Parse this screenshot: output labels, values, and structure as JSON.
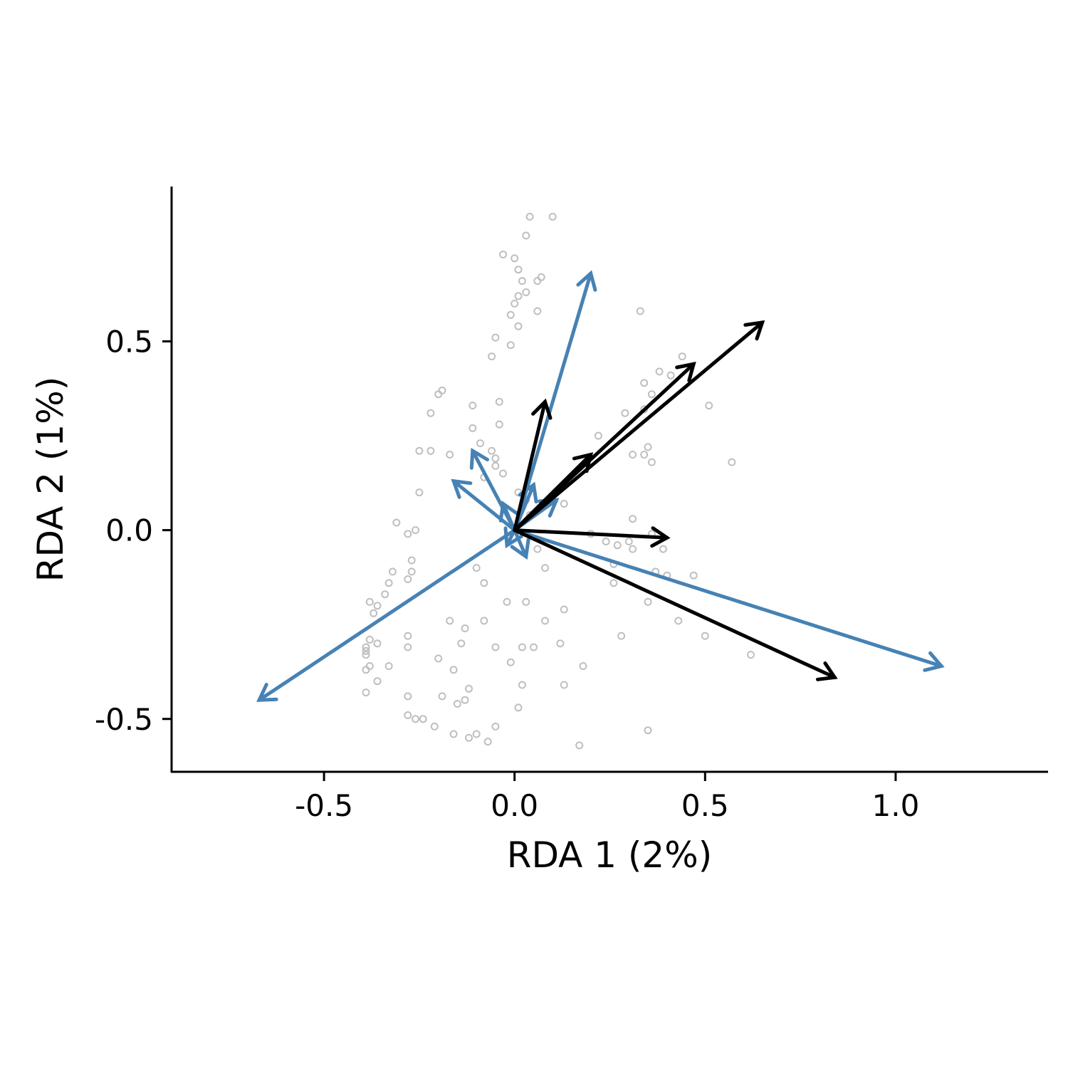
{
  "chart_data": {
    "type": "scatter",
    "title": "",
    "xlabel": "RDA 1 (2%)",
    "ylabel": "RDA 2 (1%)",
    "xlim": [
      -0.9,
      1.4
    ],
    "ylim": [
      -0.64,
      0.91
    ],
    "xticks": [
      -0.5,
      0.0,
      0.5,
      1.0
    ],
    "xtick_labels": [
      "-0.5",
      "0.0",
      "0.5",
      "1.0"
    ],
    "yticks": [
      -0.5,
      0.0,
      0.5
    ],
    "ytick_labels": [
      "-0.5",
      "0.0",
      "0.5"
    ],
    "grid": false,
    "colors": {
      "points": "#bfbfbf",
      "blue_arrows": "#4682b4",
      "black_arrows": "#000000"
    },
    "points": [
      [
        0.04,
        0.83
      ],
      [
        0.1,
        0.83
      ],
      [
        0.03,
        0.78
      ],
      [
        -0.03,
        0.73
      ],
      [
        0.0,
        0.72
      ],
      [
        0.01,
        0.69
      ],
      [
        0.07,
        0.67
      ],
      [
        0.06,
        0.66
      ],
      [
        0.02,
        0.66
      ],
      [
        0.03,
        0.63
      ],
      [
        0.01,
        0.62
      ],
      [
        0.0,
        0.6
      ],
      [
        0.06,
        0.58
      ],
      [
        -0.01,
        0.57
      ],
      [
        0.01,
        0.54
      ],
      [
        0.33,
        0.58
      ],
      [
        -0.05,
        0.51
      ],
      [
        -0.01,
        0.49
      ],
      [
        -0.06,
        0.46
      ],
      [
        0.44,
        0.46
      ],
      [
        0.38,
        0.42
      ],
      [
        0.41,
        0.41
      ],
      [
        0.34,
        0.39
      ],
      [
        0.36,
        0.36
      ],
      [
        -0.19,
        0.37
      ],
      [
        -0.2,
        0.36
      ],
      [
        -0.04,
        0.34
      ],
      [
        -0.11,
        0.33
      ],
      [
        0.51,
        0.33
      ],
      [
        0.34,
        0.32
      ],
      [
        0.29,
        0.31
      ],
      [
        -0.22,
        0.31
      ],
      [
        -0.04,
        0.28
      ],
      [
        -0.11,
        0.27
      ],
      [
        0.22,
        0.25
      ],
      [
        -0.09,
        0.23
      ],
      [
        0.35,
        0.22
      ],
      [
        -0.25,
        0.21
      ],
      [
        -0.22,
        0.21
      ],
      [
        -0.06,
        0.21
      ],
      [
        0.31,
        0.2
      ],
      [
        0.34,
        0.2
      ],
      [
        -0.17,
        0.2
      ],
      [
        -0.05,
        0.19
      ],
      [
        0.36,
        0.18
      ],
      [
        0.57,
        0.18
      ],
      [
        -0.05,
        0.17
      ],
      [
        -0.03,
        0.15
      ],
      [
        -0.08,
        0.14
      ],
      [
        -0.25,
        0.1
      ],
      [
        0.01,
        0.1
      ],
      [
        0.03,
        0.08
      ],
      [
        0.13,
        0.07
      ],
      [
        0.04,
        0.04
      ],
      [
        0.31,
        0.03
      ],
      [
        -0.31,
        0.02
      ],
      [
        -0.26,
        0.0
      ],
      [
        -0.28,
        -0.01
      ],
      [
        0.2,
        -0.01
      ],
      [
        0.36,
        -0.01
      ],
      [
        0.24,
        -0.03
      ],
      [
        0.27,
        -0.04
      ],
      [
        0.3,
        -0.03
      ],
      [
        0.31,
        -0.05
      ],
      [
        0.39,
        -0.05
      ],
      [
        0.06,
        -0.05
      ],
      [
        -0.27,
        -0.08
      ],
      [
        -0.27,
        -0.11
      ],
      [
        0.26,
        -0.09
      ],
      [
        -0.1,
        -0.1
      ],
      [
        0.08,
        -0.1
      ],
      [
        -0.32,
        -0.11
      ],
      [
        0.37,
        -0.11
      ],
      [
        0.4,
        -0.12
      ],
      [
        0.47,
        -0.12
      ],
      [
        -0.28,
        -0.13
      ],
      [
        -0.33,
        -0.14
      ],
      [
        -0.08,
        -0.14
      ],
      [
        0.26,
        -0.14
      ],
      [
        -0.34,
        -0.17
      ],
      [
        0.35,
        -0.19
      ],
      [
        -0.38,
        -0.19
      ],
      [
        -0.36,
        -0.2
      ],
      [
        -0.02,
        -0.19
      ],
      [
        0.03,
        -0.19
      ],
      [
        0.13,
        -0.21
      ],
      [
        -0.37,
        -0.22
      ],
      [
        -0.17,
        -0.24
      ],
      [
        -0.08,
        -0.24
      ],
      [
        0.08,
        -0.24
      ],
      [
        0.43,
        -0.24
      ],
      [
        -0.13,
        -0.26
      ],
      [
        -0.28,
        -0.28
      ],
      [
        0.28,
        -0.28
      ],
      [
        0.5,
        -0.28
      ],
      [
        -0.38,
        -0.29
      ],
      [
        -0.36,
        -0.3
      ],
      [
        -0.14,
        -0.3
      ],
      [
        0.12,
        -0.3
      ],
      [
        -0.39,
        -0.31
      ],
      [
        -0.28,
        -0.31
      ],
      [
        -0.05,
        -0.31
      ],
      [
        0.02,
        -0.31
      ],
      [
        0.05,
        -0.31
      ],
      [
        -0.39,
        -0.33
      ],
      [
        -0.39,
        -0.32
      ],
      [
        -0.2,
        -0.34
      ],
      [
        0.62,
        -0.33
      ],
      [
        -0.01,
        -0.35
      ],
      [
        -0.33,
        -0.36
      ],
      [
        -0.38,
        -0.36
      ],
      [
        -0.16,
        -0.37
      ],
      [
        0.18,
        -0.36
      ],
      [
        -0.39,
        -0.37
      ],
      [
        -0.36,
        -0.4
      ],
      [
        0.02,
        -0.41
      ],
      [
        0.13,
        -0.41
      ],
      [
        -0.12,
        -0.42
      ],
      [
        -0.39,
        -0.43
      ],
      [
        -0.19,
        -0.44
      ],
      [
        -0.28,
        -0.44
      ],
      [
        -0.15,
        -0.46
      ],
      [
        -0.13,
        -0.45
      ],
      [
        0.01,
        -0.47
      ],
      [
        -0.28,
        -0.49
      ],
      [
        -0.26,
        -0.5
      ],
      [
        -0.24,
        -0.5
      ],
      [
        -0.21,
        -0.52
      ],
      [
        -0.05,
        -0.52
      ],
      [
        -0.16,
        -0.54
      ],
      [
        -0.1,
        -0.54
      ],
      [
        -0.12,
        -0.55
      ],
      [
        0.35,
        -0.53
      ],
      [
        -0.07,
        -0.56
      ],
      [
        0.17,
        -0.57
      ]
    ],
    "arrows": [
      {
        "group": "blue",
        "x": 0.2,
        "y": 0.68
      },
      {
        "group": "blue",
        "x": 1.12,
        "y": -0.36
      },
      {
        "group": "blue",
        "x": -0.67,
        "y": -0.45
      },
      {
        "group": "blue",
        "x": -0.16,
        "y": 0.13
      },
      {
        "group": "blue",
        "x": -0.11,
        "y": 0.21
      },
      {
        "group": "blue",
        "x": 0.05,
        "y": 0.12
      },
      {
        "group": "blue",
        "x": 0.11,
        "y": 0.08
      },
      {
        "group": "blue",
        "x": -0.03,
        "y": 0.07
      },
      {
        "group": "blue",
        "x": 0.03,
        "y": -0.07
      },
      {
        "group": "blue",
        "x": -0.02,
        "y": -0.04
      },
      {
        "group": "black",
        "x": 0.65,
        "y": 0.55
      },
      {
        "group": "black",
        "x": 0.47,
        "y": 0.44
      },
      {
        "group": "black",
        "x": 0.2,
        "y": 0.2
      },
      {
        "group": "black",
        "x": 0.08,
        "y": 0.34
      },
      {
        "group": "black",
        "x": 0.4,
        "y": -0.02
      },
      {
        "group": "black",
        "x": 0.84,
        "y": -0.39
      }
    ]
  }
}
